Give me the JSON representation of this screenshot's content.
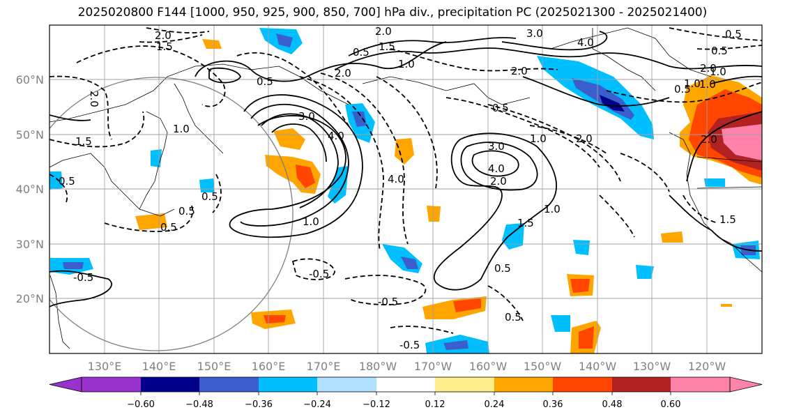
{
  "title": "2025020800 F144 [1000, 950, 925, 900, 850, 700] hPa div., precipitation PC (2025021300 - 2025021400)",
  "map": {
    "lat_labels": [
      "60°N",
      "50°N",
      "40°N",
      "30°N",
      "20°N"
    ],
    "lon_labels": [
      "130°E",
      "140°E",
      "150°E",
      "160°E",
      "170°E",
      "180°W",
      "170°W",
      "160°W",
      "150°W",
      "140°W",
      "130°W",
      "120°W"
    ],
    "contour_labels": [
      "2.0",
      "1.5",
      "2.0",
      "1.0",
      "1.5",
      "0.5",
      "2.0",
      "0.5",
      "3.0",
      "4.0",
      "2.0",
      "0.5",
      "1.5",
      "1.0",
      "0.5",
      "2.0",
      "3.0",
      "4.0",
      "1.0",
      "1.0",
      "3.0",
      "4.0",
      "2.0",
      "1.5",
      "1.0",
      "0.5",
      "2.0",
      "4.0",
      "1.0",
      "0.5",
      "0.5",
      "0.5",
      "0.5",
      "0.5",
      "0.5",
      "-0.5",
      "-0.5",
      "-0.5",
      "-0.5",
      "1.0",
      "0.5",
      "2.0",
      "1.5",
      "1.0",
      "2.0"
    ]
  },
  "colorbar": {
    "ticks": [
      "−0.60",
      "−0.48",
      "−0.36",
      "−0.24",
      "−0.12",
      "0.12",
      "0.24",
      "0.36",
      "0.48",
      "0.60"
    ],
    "colors": [
      "#9932cc",
      "#00008b",
      "#3a5fcd",
      "#00bfff",
      "#b0e2ff",
      "#ffffff",
      "#ffec8b",
      "#ffa500",
      "#ff4500",
      "#b22222",
      "#ff82ab"
    ]
  }
}
